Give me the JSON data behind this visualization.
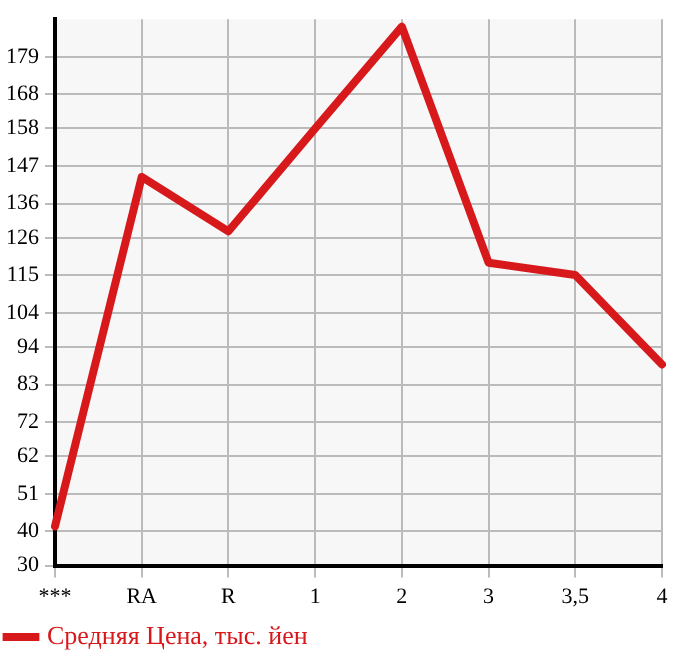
{
  "chart_data": {
    "type": "line",
    "categories": [
      "***",
      "RA",
      "R",
      "1",
      "2",
      "3",
      "3,5",
      "4"
    ],
    "series": [
      {
        "name": "Средняя Цена, тыс. йен",
        "color": "#d7191c",
        "values": [
          41.5,
          143.8,
          127.9,
          158,
          187.8,
          118.7,
          115.1,
          88.9
        ]
      }
    ],
    "ylim": [
      30,
      190
    ],
    "yticks": [
      30,
      40,
      51,
      62,
      72,
      83,
      94,
      104,
      115,
      126,
      136,
      147,
      158,
      168,
      179
    ],
    "grid": true,
    "legend": "bottom left",
    "marker": "none",
    "line_style": "solid"
  }
}
